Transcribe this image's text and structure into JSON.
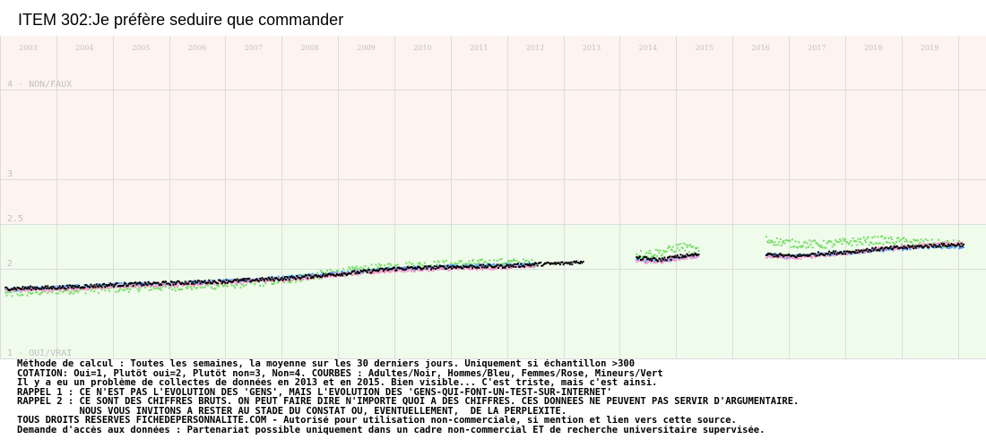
{
  "chart_data": {
    "type": "scatter",
    "title": "ITEM 302:Je préfère seduire que commander",
    "x_tick_labels": [
      "2003",
      "2004",
      "2005",
      "2006",
      "2007",
      "2008",
      "2009",
      "2010",
      "2011",
      "2012",
      "2013",
      "2014",
      "2015",
      "2016",
      "2017",
      "2018",
      "2019"
    ],
    "xlim": [
      2002.5,
      2020.0
    ],
    "ylim": [
      1,
      4.6
    ],
    "y_tick_labels": [
      {
        "value": 4,
        "label": "4 - NON/FAUX"
      },
      {
        "value": 3,
        "label": "3"
      },
      {
        "value": 2.5,
        "label": "2.5"
      },
      {
        "value": 2,
        "label": "2"
      },
      {
        "value": 1,
        "label": "1 - OUI/VRAI"
      }
    ],
    "band_split": 2.5,
    "grid": true,
    "colors": {
      "upper_band": "#fdf4ef",
      "lower_band": "#effcec",
      "grid": "#dcdcdc",
      "tick_label": "#c0c0c0",
      "adultes": "#000000",
      "hommes": "#5599ff",
      "femmes": "#ff99cc",
      "mineurs": "#77dd66"
    },
    "series": [
      {
        "color": "#000000",
        "points": [
          [
            2002.6,
            1.78
          ],
          [
            2003.5,
            1.79
          ],
          [
            2004.5,
            1.82
          ],
          [
            2005.5,
            1.84
          ],
          [
            2006.5,
            1.86
          ],
          [
            2007.5,
            1.89
          ],
          [
            2008.5,
            1.94
          ],
          [
            2009.5,
            2.0
          ],
          [
            2010.5,
            2.02
          ],
          [
            2011.5,
            2.03
          ],
          [
            2012.0,
            2.05
          ],
          [
            2012.5,
            2.06
          ],
          [
            2012.85,
            2.08
          ]
        ]
      },
      {
        "color": "#5599ff",
        "points": [
          [
            2002.6,
            1.77
          ],
          [
            2003.5,
            1.79
          ],
          [
            2004.5,
            1.82
          ],
          [
            2005.5,
            1.83
          ],
          [
            2006.5,
            1.86
          ],
          [
            2007.5,
            1.9
          ],
          [
            2008.5,
            1.95
          ],
          [
            2009.5,
            2.0
          ],
          [
            2010.5,
            2.02
          ],
          [
            2011.5,
            2.04
          ],
          [
            2012.0,
            2.05
          ]
        ]
      },
      {
        "color": "#ff99cc",
        "points": [
          [
            2002.6,
            1.76
          ],
          [
            2003.5,
            1.77
          ],
          [
            2004.5,
            1.8
          ],
          [
            2005.5,
            1.82
          ],
          [
            2006.5,
            1.85
          ],
          [
            2007.5,
            1.88
          ],
          [
            2008.5,
            1.93
          ],
          [
            2009.5,
            1.98
          ],
          [
            2010.5,
            2.0
          ],
          [
            2011.5,
            2.01
          ],
          [
            2012.0,
            2.03
          ]
        ]
      },
      {
        "color": "#77dd66",
        "points": [
          [
            2002.6,
            1.72
          ],
          [
            2003.5,
            1.76
          ],
          [
            2004.5,
            1.78
          ],
          [
            2005.5,
            1.8
          ],
          [
            2006.5,
            1.82
          ],
          [
            2007.5,
            1.87
          ],
          [
            2008.5,
            1.96
          ],
          [
            2009.5,
            2.03
          ],
          [
            2010.5,
            2.05
          ],
          [
            2011.5,
            2.07
          ],
          [
            2012.0,
            2.06
          ]
        ]
      },
      {
        "color": "#000000",
        "points": [
          [
            2013.8,
            2.12
          ],
          [
            2014.2,
            2.1
          ],
          [
            2014.6,
            2.14
          ],
          [
            2014.9,
            2.16
          ]
        ]
      },
      {
        "color": "#5599ff",
        "points": [
          [
            2013.8,
            2.1
          ],
          [
            2014.2,
            2.09
          ],
          [
            2014.6,
            2.12
          ],
          [
            2014.9,
            2.15
          ]
        ]
      },
      {
        "color": "#ff99cc",
        "points": [
          [
            2013.8,
            2.08
          ],
          [
            2014.2,
            2.08
          ],
          [
            2014.6,
            2.12
          ],
          [
            2014.9,
            2.14
          ]
        ]
      },
      {
        "color": "#77dd66",
        "points": [
          [
            2013.8,
            2.16
          ],
          [
            2014.2,
            2.18
          ],
          [
            2014.6,
            2.25
          ],
          [
            2014.9,
            2.2
          ]
        ]
      },
      {
        "color": "#000000",
        "points": [
          [
            2016.1,
            2.16
          ],
          [
            2016.6,
            2.14
          ],
          [
            2017.1,
            2.17
          ],
          [
            2017.6,
            2.19
          ],
          [
            2018.1,
            2.22
          ],
          [
            2018.6,
            2.24
          ],
          [
            2019.1,
            2.26
          ],
          [
            2019.6,
            2.27
          ]
        ]
      },
      {
        "color": "#5599ff",
        "points": [
          [
            2016.1,
            2.15
          ],
          [
            2016.6,
            2.13
          ],
          [
            2017.1,
            2.16
          ],
          [
            2017.6,
            2.18
          ],
          [
            2018.1,
            2.21
          ],
          [
            2018.6,
            2.23
          ],
          [
            2019.1,
            2.25
          ],
          [
            2019.6,
            2.24
          ]
        ]
      },
      {
        "color": "#ff99cc",
        "points": [
          [
            2016.1,
            2.14
          ],
          [
            2016.6,
            2.12
          ],
          [
            2017.1,
            2.15
          ],
          [
            2017.6,
            2.18
          ],
          [
            2018.1,
            2.22
          ],
          [
            2018.6,
            2.24
          ],
          [
            2019.1,
            2.27
          ],
          [
            2019.6,
            2.28
          ]
        ]
      },
      {
        "color": "#77dd66",
        "points": [
          [
            2016.1,
            2.32
          ],
          [
            2016.6,
            2.28
          ],
          [
            2017.1,
            2.27
          ],
          [
            2017.6,
            2.3
          ],
          [
            2018.1,
            2.32
          ],
          [
            2018.6,
            2.3
          ],
          [
            2019.1,
            2.28
          ],
          [
            2019.6,
            2.27
          ]
        ]
      }
    ]
  },
  "notes": [
    "Méthode de calcul : Toutes les semaines, la moyenne sur les 30 derniers jours. Uniquement si échantillon >300",
    "COTATION: Oui=1, Plutôt oui=2, Plutôt non=3, Non=4. COURBES : Adultes/Noir, Hommes/Bleu, Femmes/Rose, Mineurs/Vert",
    "Il y a eu un problème de collectes de données en 2013 et en 2015. Bien visible... C'est triste, mais c'est ainsi.",
    "RAPPEL 1 : CE N'EST PAS L'EVOLUTION DES 'GENS', MAIS L'EVOLUTION DES 'GENS-QUI-FONT-UN-TEST-SUR-INTERNET'",
    "RAPPEL 2 : CE SONT DES CHIFFRES BRUTS. ON PEUT FAIRE DIRE N'IMPORTE QUOI A DES CHIFFRES. CES DONNEES NE PEUVENT PAS SERVIR D'ARGUMENTAIRE.",
    "           NOUS VOUS INVITONS A RESTER AU STADE DU CONSTAT OU, EVENTUELLEMENT,  DE LA PERPLEXITE.",
    "TOUS DROITS RESERVES FICHEDEPERSONNALITE.COM - Autorisé pour utilisation non-commerciale, si mention et lien vers cette source.",
    "Demande d'accès aux données : Partenariat possible uniquement dans un cadre non-commercial ET de recherche universitaire supervisée."
  ]
}
